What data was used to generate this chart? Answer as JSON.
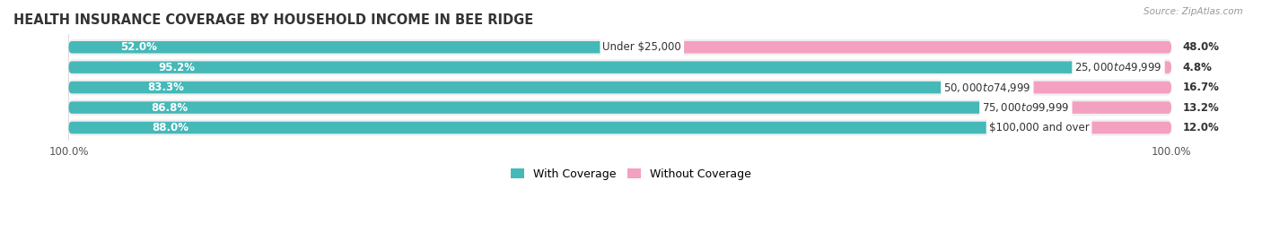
{
  "title": "HEALTH INSURANCE COVERAGE BY HOUSEHOLD INCOME IN BEE RIDGE",
  "source": "Source: ZipAtlas.com",
  "categories": [
    "Under $25,000",
    "$25,000 to $49,999",
    "$50,000 to $74,999",
    "$75,000 to $99,999",
    "$100,000 and over"
  ],
  "with_coverage": [
    52.0,
    95.2,
    83.3,
    86.8,
    88.0
  ],
  "without_coverage": [
    48.0,
    4.8,
    16.7,
    13.2,
    12.0
  ],
  "color_with": "#45b8b8",
  "color_without": "#f4a0c0",
  "row_bg_color": "#efefef",
  "title_fontsize": 10.5,
  "label_fontsize": 8.5,
  "cat_fontsize": 8.5,
  "legend_fontsize": 9,
  "tick_fontsize": 8.5
}
